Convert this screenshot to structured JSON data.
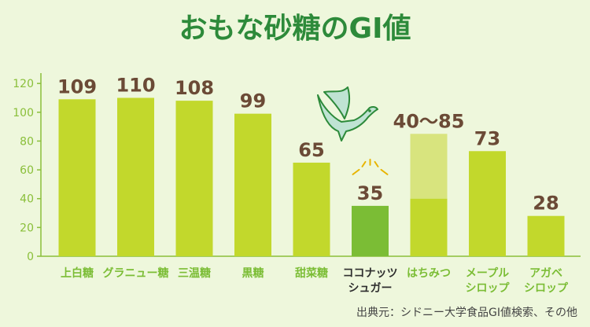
{
  "colors": {
    "background": "#eef7dc",
    "bar": "#c2d82c",
    "bar_highlight": "#7bbd35",
    "bar_range": "#d8e47e",
    "title": "#2d8a3a",
    "value_label": "#6b4a36",
    "category_label": "#7bbd35",
    "category_label_highlight": "#2e2e2e",
    "axis": "#8abf3a",
    "source": "#444444",
    "bird": "#bfe3d3",
    "sparkle": "#e8b400"
  },
  "chart_data": {
    "type": "bar",
    "title": "おもな砂糖のGI値",
    "xlabel": "",
    "ylabel": "",
    "ylim": [
      0,
      125
    ],
    "yticks": [
      0,
      20,
      40,
      60,
      80,
      100,
      120
    ],
    "grid": false,
    "highlight_index": 5,
    "categories": [
      [
        "上白糖"
      ],
      [
        "グラニュー糖"
      ],
      [
        "三温糖"
      ],
      [
        "黒糖"
      ],
      [
        "甜菜糖"
      ],
      [
        "ココナッツ",
        "シュガー"
      ],
      [
        "はちみつ"
      ],
      [
        "メープル",
        "シロップ"
      ],
      [
        "アガベ",
        "シロップ"
      ]
    ],
    "values": [
      109,
      110,
      108,
      99,
      65,
      35,
      40,
      73,
      28
    ],
    "range_upper": [
      null,
      null,
      null,
      null,
      null,
      null,
      85,
      null,
      null
    ],
    "value_labels": [
      "109",
      "110",
      "108",
      "99",
      "65",
      "35",
      "40〜85",
      "73",
      "28"
    ],
    "source": "出典元：シドニー大学食品GI値検索、その他"
  }
}
